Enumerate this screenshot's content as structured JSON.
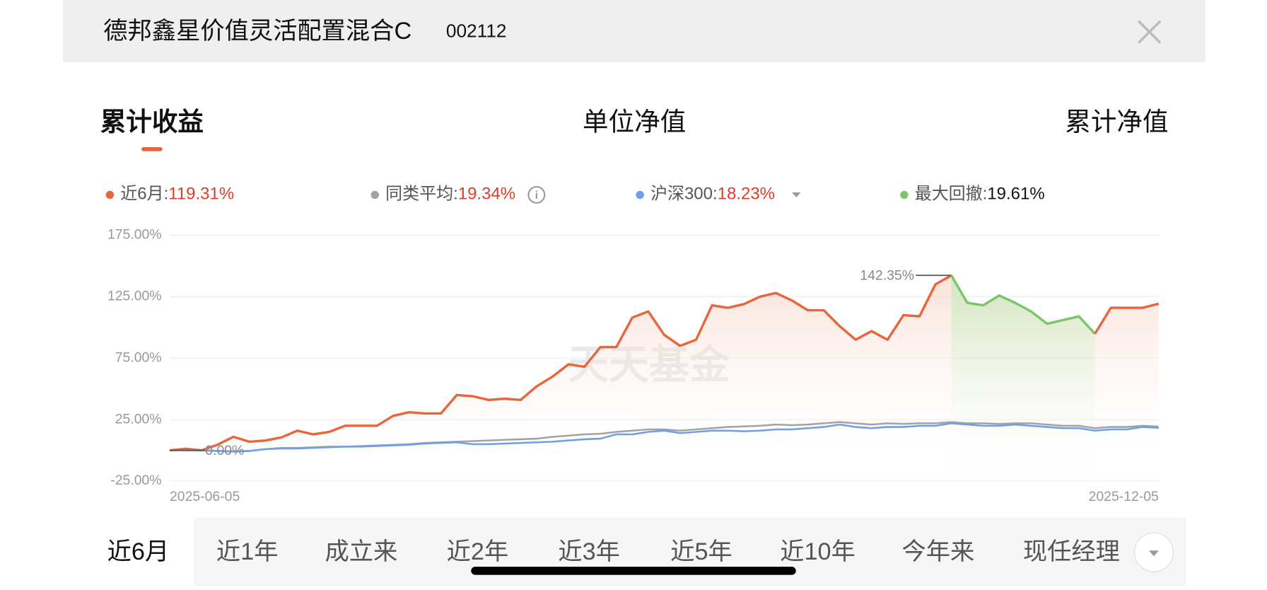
{
  "header": {
    "title": "德邦鑫星价值灵活配置混合C",
    "code": "002112"
  },
  "tabs": [
    {
      "label": "累计收益",
      "active": true
    },
    {
      "label": "单位净值",
      "active": false
    },
    {
      "label": "累计净值",
      "active": false
    }
  ],
  "periods": [
    {
      "label": "近6月",
      "active": true
    },
    {
      "label": "近1年",
      "active": false
    },
    {
      "label": "成立来",
      "active": false
    },
    {
      "label": "近2年",
      "active": false
    },
    {
      "label": "近3年",
      "active": false
    },
    {
      "label": "近5年",
      "active": false
    },
    {
      "label": "近10年",
      "active": false
    },
    {
      "label": "今年来",
      "active": false
    },
    {
      "label": "现任经理",
      "active": false
    }
  ],
  "chart_data": {
    "type": "line",
    "watermark": "天天基金",
    "categories": [
      "2025-06-05",
      null,
      null,
      null,
      null,
      null,
      null,
      null,
      null,
      null,
      null,
      null,
      null,
      null,
      null,
      null,
      null,
      null,
      null,
      null,
      null,
      null,
      null,
      null,
      null,
      null,
      null,
      null,
      null,
      null,
      null,
      null,
      null,
      null,
      null,
      null,
      null,
      null,
      null,
      null,
      null,
      null,
      null,
      null,
      null,
      null,
      null,
      null,
      null,
      null,
      null,
      null,
      null,
      null,
      null,
      null,
      null,
      null,
      null,
      null,
      null,
      null,
      "2025-12-05"
    ],
    "ylim": [
      -25,
      175
    ],
    "yticks": [
      {
        "value": -25,
        "label": "-25.00%"
      },
      {
        "value": 25,
        "label": "25.00%"
      },
      {
        "value": 75,
        "label": "75.00%"
      },
      {
        "value": 125,
        "label": "125.00%"
      },
      {
        "value": 175,
        "label": "175.00%"
      }
    ],
    "grid": true,
    "series": [
      {
        "name": "同类平均",
        "color": "#a3a3a3",
        "period_return": 19.34,
        "period_return_label": "19.34%",
        "values": [
          0,
          0,
          0,
          -0.5,
          -1,
          -0.5,
          1,
          2,
          2,
          2.5,
          3,
          3,
          3.5,
          4,
          4.5,
          5,
          6,
          6.5,
          7,
          7.5,
          8,
          8.5,
          9,
          9.5,
          11,
          12,
          13,
          13.5,
          15,
          16,
          17,
          17,
          16,
          17,
          18,
          19,
          19.5,
          20,
          21,
          20.5,
          21,
          22,
          23,
          22,
          21,
          22,
          21.5,
          22,
          22,
          23,
          22,
          22,
          21.5,
          22,
          22,
          21,
          20,
          20,
          18,
          19,
          19,
          20,
          19.34
        ]
      },
      {
        "name": "沪深300",
        "color": "#6f9fe6",
        "period_return": 18.23,
        "period_return_label": "18.23%",
        "values": [
          0,
          0,
          0,
          -0.5,
          -1,
          -0.5,
          1,
          1.5,
          1.5,
          2,
          2.5,
          3,
          3,
          3.5,
          4,
          4.5,
          5.5,
          6,
          6.5,
          5,
          5,
          5.5,
          6,
          6.5,
          7,
          8,
          9,
          9.5,
          13,
          13,
          15,
          16,
          14,
          15,
          16,
          16,
          15.5,
          16,
          17,
          17,
          18,
          19,
          21,
          19,
          18,
          19,
          19,
          20,
          20,
          22,
          21,
          20,
          20,
          21,
          20,
          19,
          18,
          18,
          16,
          17,
          17,
          19,
          18.23
        ]
      },
      {
        "name": "近6月",
        "color": "#e8663d",
        "period_return": 119.31,
        "period_return_label": "119.31%",
        "values": [
          0,
          1.3,
          0,
          4.6,
          11,
          7,
          8,
          10.5,
          16,
          13,
          15,
          20,
          20,
          20,
          28,
          31,
          30,
          30,
          45,
          44,
          41,
          42,
          41,
          52,
          60,
          70,
          68,
          84,
          84,
          108,
          113,
          94,
          85,
          90,
          118,
          116,
          119,
          125,
          128,
          122,
          114,
          114,
          101,
          90,
          97,
          90,
          110,
          109,
          135,
          142.35,
          120,
          118,
          126,
          120,
          113,
          103,
          106,
          109,
          94.83,
          116,
          116,
          116,
          119.31
        ]
      }
    ],
    "legend_order": [
      "近6月",
      "同类平均",
      "沪深300"
    ],
    "max_drawdown": {
      "name": "最大回撤",
      "value": 19.61,
      "label": "19.61%",
      "color": "#7cc56a"
    },
    "annotations": [
      {
        "value": 142.35,
        "label": "142.35%"
      },
      {
        "value": 0,
        "label": "0.00%"
      }
    ]
  }
}
